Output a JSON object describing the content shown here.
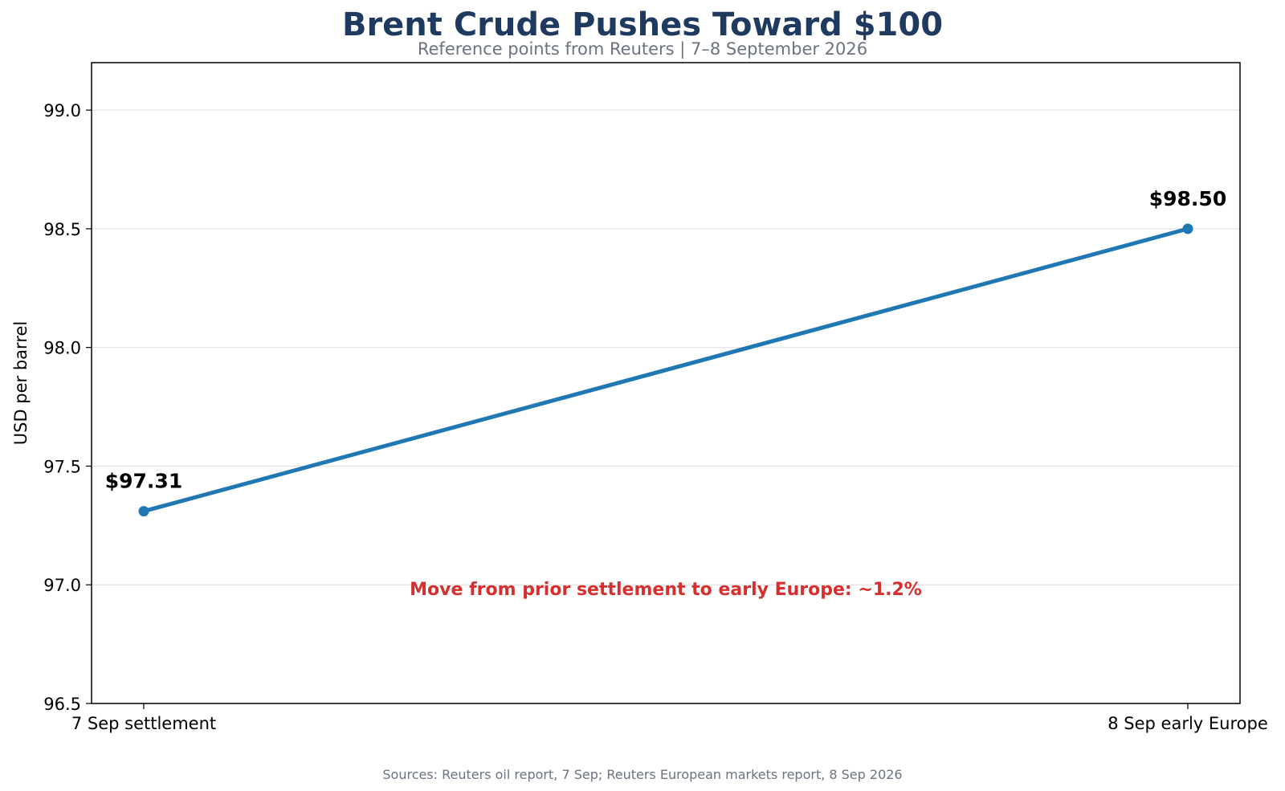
{
  "header": {
    "title": "Brent Crude Pushes Toward $100",
    "subtitle": "Reference points from Reuters | 7–8 September 2026"
  },
  "footer": {
    "source": "Sources: Reuters oil report, 7 Sep; Reuters European markets report, 8 Sep 2026"
  },
  "chart_data": {
    "type": "line",
    "title": "Brent Crude Pushes Toward $100",
    "subtitle": "Reference points from Reuters | 7–8 September 2026",
    "xlabel": "",
    "ylabel": "USD per barrel",
    "categories": [
      "7 Sep settlement",
      "8 Sep early Europe"
    ],
    "series": [
      {
        "values": [
          97.31,
          98.5
        ],
        "color": "#1f77b4"
      }
    ],
    "point_labels": [
      "$97.31",
      "$98.50"
    ],
    "ylim": [
      96.5,
      99.2
    ],
    "yticks": [
      96.5,
      97.0,
      97.5,
      98.0,
      98.5,
      99.0
    ],
    "ytick_labels": [
      "96.5",
      "97.0",
      "97.5",
      "98.0",
      "98.5",
      "99.0"
    ],
    "grid": "horizontal",
    "annotation": {
      "text": "Move from prior settlement to early Europe: ~1.2%",
      "color": "#d62f2f"
    }
  }
}
